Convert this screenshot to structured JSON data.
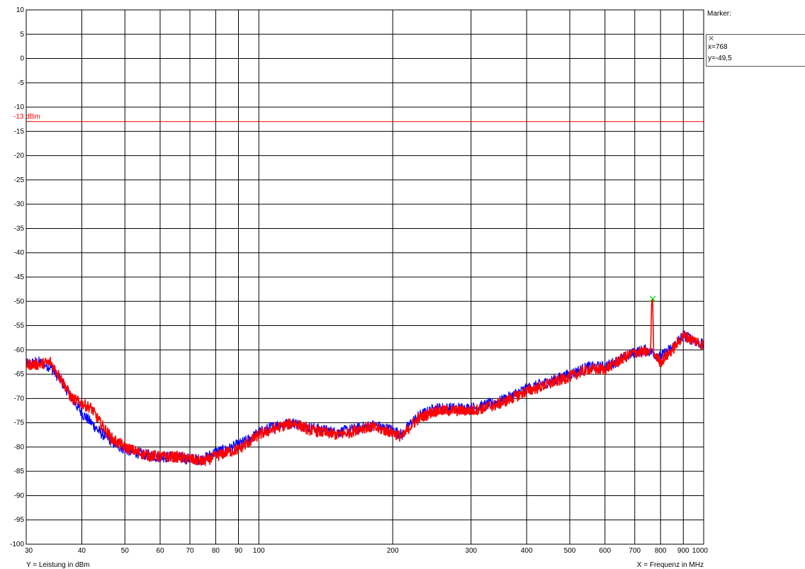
{
  "marker_panel": {
    "title": "Marker:",
    "x_text": "x=768",
    "y_text": "y=-49,5"
  },
  "chart_data": {
    "type": "line",
    "xscale": "log",
    "xlim": [
      30,
      1000
    ],
    "ylim": [
      -100,
      10
    ],
    "xlabel": "X = Frequenz in MHz",
    "ylabel": "Y = Leistung in dBm",
    "x_ticks": [
      30,
      40,
      50,
      60,
      70,
      80,
      90,
      100,
      200,
      300,
      400,
      500,
      600,
      700,
      800,
      900,
      1000
    ],
    "y_ticks": [
      10,
      5,
      0,
      -5,
      -10,
      -15,
      -20,
      -25,
      -30,
      -35,
      -40,
      -45,
      -50,
      -55,
      -60,
      -65,
      -70,
      -75,
      -80,
      -85,
      -90,
      -95,
      -100
    ],
    "grid": true,
    "reference_line": {
      "y": -13,
      "label": "-13 dBm",
      "color": "#ff0000"
    },
    "marker": {
      "x": 768,
      "y": -49.5,
      "color": "#00cc00"
    },
    "series": [
      {
        "color": "#0000ff",
        "points": [
          [
            30,
            -63
          ],
          [
            32,
            -62.5
          ],
          [
            34,
            -63.5
          ],
          [
            36,
            -66.5
          ],
          [
            38,
            -70
          ],
          [
            40,
            -73
          ],
          [
            42,
            -75
          ],
          [
            44,
            -77
          ],
          [
            47,
            -79
          ],
          [
            50,
            -80.5
          ],
          [
            55,
            -81.5
          ],
          [
            60,
            -82
          ],
          [
            65,
            -82
          ],
          [
            70,
            -82.5
          ],
          [
            75,
            -82.5
          ],
          [
            80,
            -81
          ],
          [
            85,
            -80.5
          ],
          [
            90,
            -79.5
          ],
          [
            95,
            -78.5
          ],
          [
            100,
            -77
          ],
          [
            110,
            -75.5
          ],
          [
            120,
            -75
          ],
          [
            130,
            -76
          ],
          [
            140,
            -76.5
          ],
          [
            150,
            -77
          ],
          [
            160,
            -76.5
          ],
          [
            170,
            -76
          ],
          [
            180,
            -75.5
          ],
          [
            190,
            -76
          ],
          [
            200,
            -76.5
          ],
          [
            210,
            -77.5
          ],
          [
            220,
            -75
          ],
          [
            230,
            -73.5
          ],
          [
            250,
            -72
          ],
          [
            270,
            -72
          ],
          [
            290,
            -72
          ],
          [
            300,
            -72
          ],
          [
            320,
            -71.5
          ],
          [
            350,
            -70.5
          ],
          [
            380,
            -69
          ],
          [
            400,
            -68
          ],
          [
            450,
            -66.5
          ],
          [
            500,
            -65
          ],
          [
            550,
            -63.5
          ],
          [
            600,
            -63.5
          ],
          [
            650,
            -62
          ],
          [
            700,
            -60.5
          ],
          [
            740,
            -60
          ],
          [
            768,
            -60.5
          ],
          [
            800,
            -61.5
          ],
          [
            850,
            -59.5
          ],
          [
            900,
            -57
          ],
          [
            950,
            -58
          ],
          [
            1000,
            -59
          ]
        ]
      },
      {
        "color": "#ff0000",
        "points": [
          [
            30,
            -63
          ],
          [
            32,
            -63
          ],
          [
            34,
            -62.5
          ],
          [
            36,
            -66
          ],
          [
            38,
            -70
          ],
          [
            40,
            -71
          ],
          [
            42,
            -72
          ],
          [
            44,
            -75
          ],
          [
            47,
            -78.5
          ],
          [
            50,
            -80
          ],
          [
            55,
            -81.5
          ],
          [
            60,
            -82
          ],
          [
            65,
            -82
          ],
          [
            70,
            -82.5
          ],
          [
            75,
            -83
          ],
          [
            80,
            -82
          ],
          [
            85,
            -81
          ],
          [
            90,
            -80.5
          ],
          [
            95,
            -79
          ],
          [
            100,
            -77.5
          ],
          [
            110,
            -76
          ],
          [
            120,
            -75
          ],
          [
            130,
            -76.5
          ],
          [
            140,
            -77
          ],
          [
            150,
            -77.5
          ],
          [
            160,
            -77
          ],
          [
            170,
            -76
          ],
          [
            180,
            -76
          ],
          [
            190,
            -76.5
          ],
          [
            200,
            -77
          ],
          [
            210,
            -78
          ],
          [
            220,
            -75.5
          ],
          [
            230,
            -74
          ],
          [
            250,
            -72.5
          ],
          [
            270,
            -72.5
          ],
          [
            290,
            -72.5
          ],
          [
            300,
            -72.5
          ],
          [
            320,
            -72
          ],
          [
            350,
            -71
          ],
          [
            380,
            -69.5
          ],
          [
            400,
            -68.5
          ],
          [
            450,
            -67
          ],
          [
            500,
            -65.5
          ],
          [
            550,
            -64
          ],
          [
            600,
            -64
          ],
          [
            650,
            -62
          ],
          [
            700,
            -60.5
          ],
          [
            740,
            -60.5
          ],
          [
            760,
            -60.5
          ],
          [
            764,
            -50
          ],
          [
            768,
            -49.5
          ],
          [
            772,
            -60.5
          ],
          [
            800,
            -62.5
          ],
          [
            850,
            -60
          ],
          [
            900,
            -57
          ],
          [
            950,
            -58
          ],
          [
            1000,
            -59
          ]
        ]
      }
    ]
  }
}
